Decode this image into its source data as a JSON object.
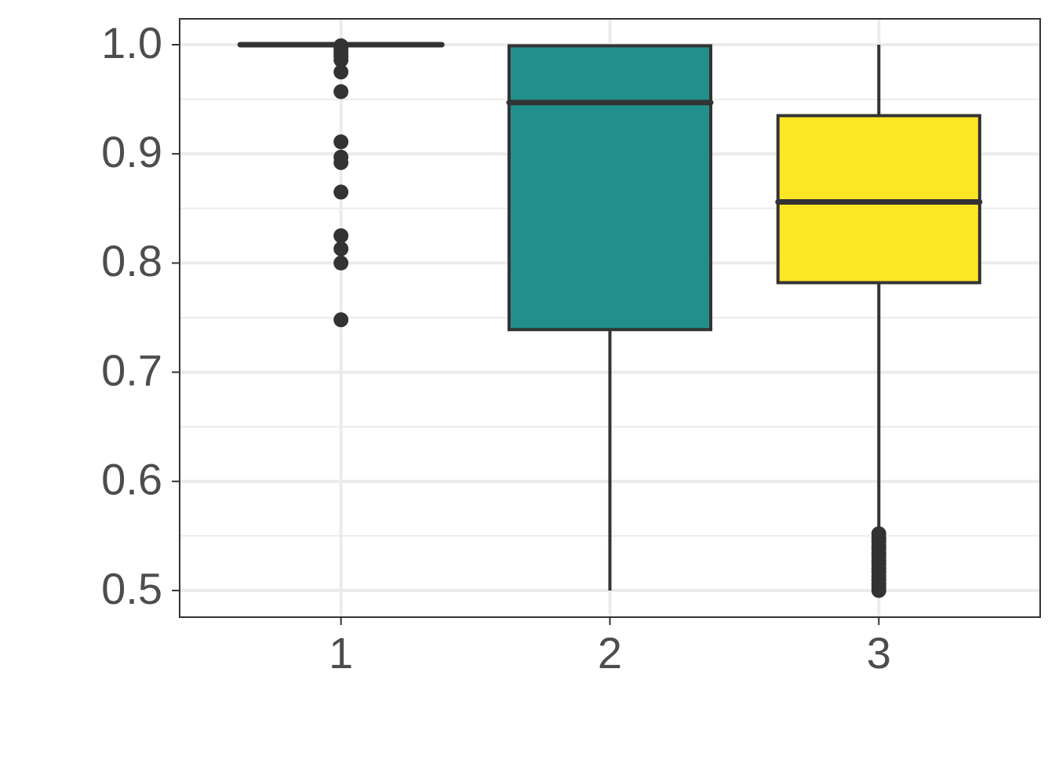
{
  "chart_data": {
    "type": "box",
    "categories": [
      "1",
      "2",
      "3"
    ],
    "boxes": [
      {
        "whisker_low": 1.0,
        "q1": 1.0,
        "median": 1.0,
        "q3": 1.0,
        "whisker_high": 1.0,
        "color": "#ffffff",
        "outliers": [
          0.999,
          0.997,
          0.995,
          0.992,
          0.989,
          0.986,
          0.975,
          0.957,
          0.911,
          0.897,
          0.892,
          0.865,
          0.825,
          0.813,
          0.8,
          0.748
        ]
      },
      {
        "whisker_low": 0.5,
        "q1": 0.739,
        "median": 0.947,
        "q3": 0.999,
        "whisker_high": 0.999,
        "color": "#21908c",
        "outliers": []
      },
      {
        "whisker_low": 0.555,
        "q1": 0.782,
        "median": 0.856,
        "q3": 0.935,
        "whisker_high": 1.0,
        "color": "#fde725",
        "outliers": [
          0.552,
          0.548,
          0.545,
          0.541,
          0.538,
          0.534,
          0.531,
          0.527,
          0.524,
          0.52,
          0.517,
          0.513,
          0.51,
          0.506,
          0.503,
          0.5
        ]
      }
    ],
    "ylim": [
      0.4756,
      1.0237
    ],
    "yticks": [
      0.5,
      0.6,
      0.7,
      0.8,
      0.9,
      {
        "value": 1.0,
        "label": "1.0"
      }
    ],
    "yminorticks": [
      0.55,
      0.65,
      0.75,
      0.85,
      0.95
    ],
    "grid": true
  }
}
